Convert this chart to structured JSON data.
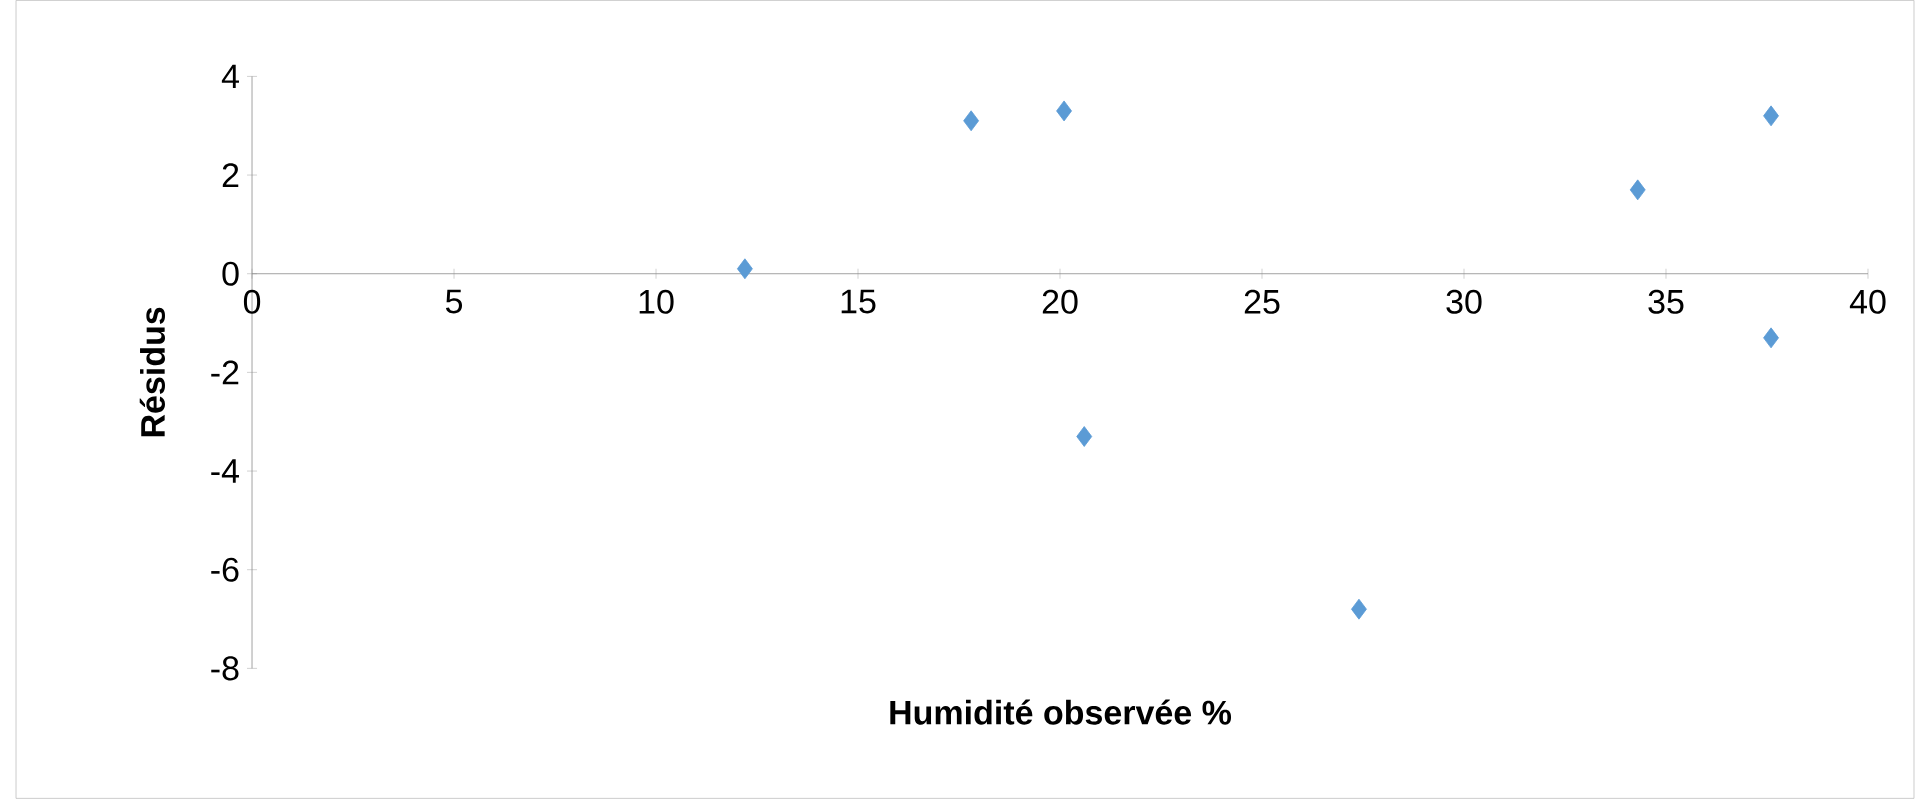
{
  "chart_data": {
    "type": "scatter",
    "xlabel": "Humidité observée %",
    "ylabel": "Résidus",
    "x": [
      12.2,
      17.8,
      20.1,
      20.6,
      27.4,
      34.3,
      37.6,
      37.6
    ],
    "values": [
      0.1,
      3.1,
      3.3,
      -3.3,
      -6.8,
      1.7,
      3.2,
      -1.3
    ],
    "color": "#5b9bd5",
    "marker": "diamond",
    "xlim": [
      0,
      40
    ],
    "ylim": [
      -8,
      4
    ],
    "xticks": [
      0,
      5,
      10,
      15,
      20,
      25,
      30,
      35,
      40
    ],
    "yticks": [
      -8,
      -6,
      -4,
      -2,
      0,
      2,
      4
    ]
  }
}
